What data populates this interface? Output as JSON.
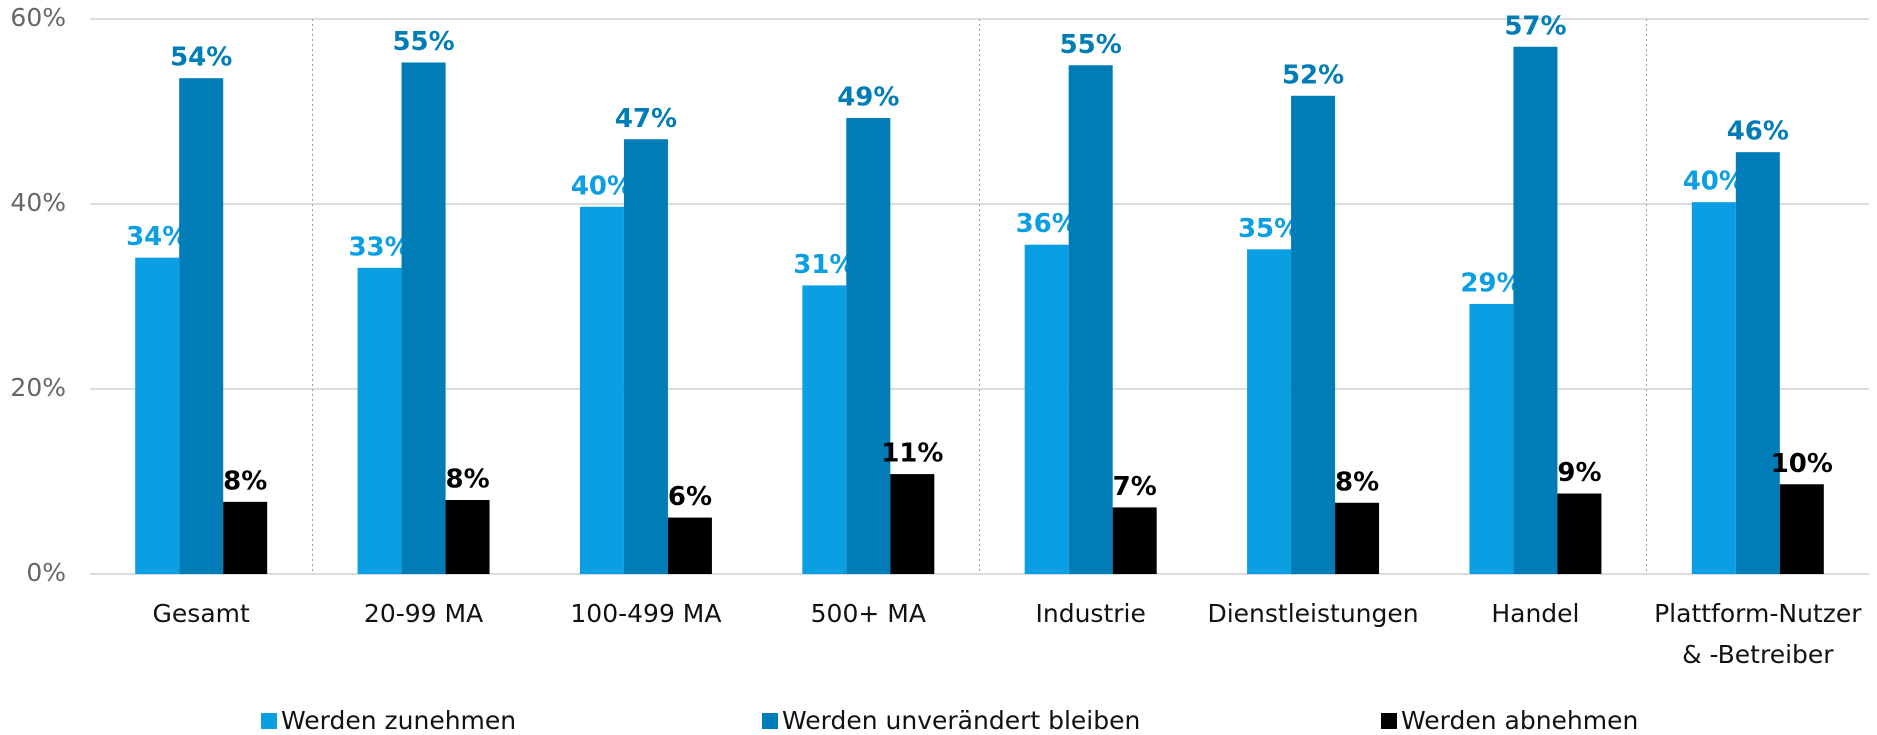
{
  "chart_data": {
    "type": "bar",
    "categories": [
      "Gesamt",
      "20-99 MA",
      "100-499 MA",
      "500+ MA",
      "Industrie",
      "Dienstleistungen",
      "Handel",
      "Plattform-Nutzer & -Betreiber"
    ],
    "series": [
      {
        "name": "Werden zunehmen",
        "color": "#0a9fe3",
        "values": [
          34.2,
          33.1,
          39.7,
          31.2,
          35.6,
          35.1,
          29.2,
          40.2
        ],
        "value_labels": [
          "34%",
          "33%",
          "40%",
          "31%",
          "36%",
          "35%",
          "29%",
          "40%"
        ]
      },
      {
        "name": "Werden unverändert bleiben",
        "color": "#007cb6",
        "values": [
          53.6,
          55.3,
          47.0,
          49.3,
          55.0,
          51.7,
          57.0,
          45.6
        ],
        "value_labels": [
          "54%",
          "55%",
          "47%",
          "49%",
          "55%",
          "52%",
          "57%",
          "46%"
        ]
      },
      {
        "name": "Werden abnehmen",
        "color": "#000000",
        "values": [
          7.8,
          8.0,
          6.1,
          10.8,
          7.2,
          7.7,
          8.7,
          9.7
        ],
        "value_labels": [
          "8%",
          "8%",
          "6%",
          "11%",
          "7%",
          "8%",
          "9%",
          "10%"
        ]
      }
    ],
    "ylim": [
      0,
      60
    ],
    "yticks": [
      {
        "value": 0,
        "label": "0%"
      },
      {
        "value": 20,
        "label": "20%"
      },
      {
        "value": 40,
        "label": "40%"
      },
      {
        "value": 60,
        "label": "60%"
      }
    ],
    "grid": true
  }
}
